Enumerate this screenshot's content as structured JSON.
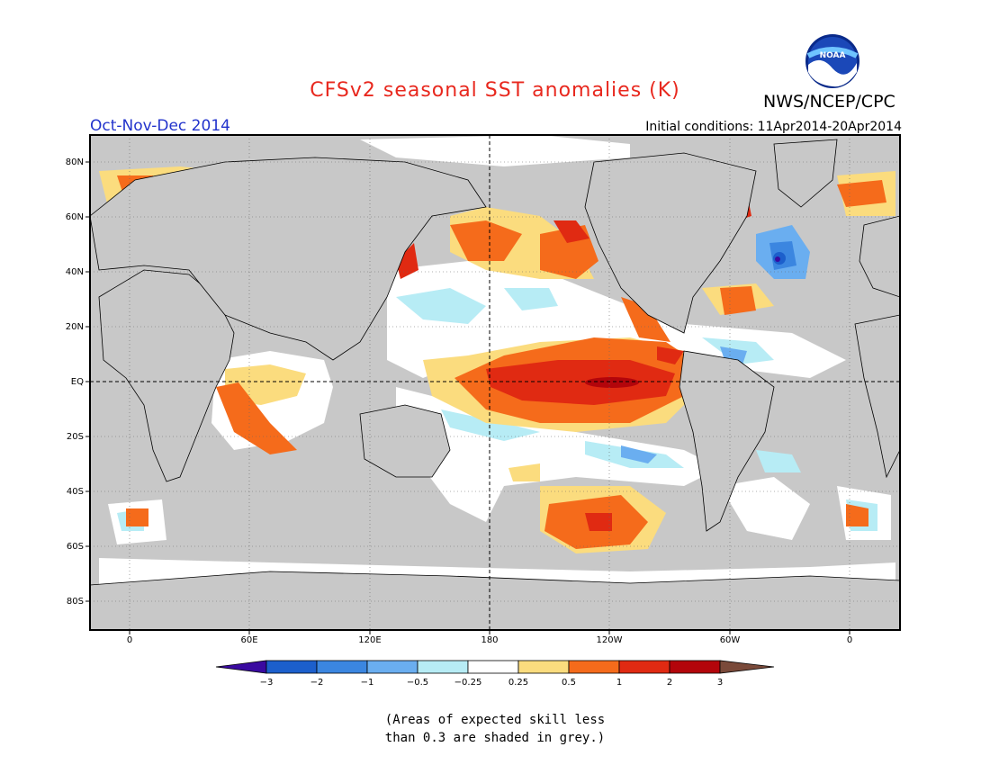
{
  "title": "CFSv2 seasonal SST anomalies (K)",
  "organization": "NWS/NCEP/CPC",
  "logo_text": "NOAA",
  "season": "Oct-Nov-Dec 2014",
  "initial_conditions": "Initial conditions: 11Apr2014-20Apr2014",
  "lat_labels": [
    "80N",
    "60N",
    "40N",
    "20N",
    "EQ",
    "20S",
    "40S",
    "60S",
    "80S"
  ],
  "lon_labels": [
    "0",
    "60E",
    "120E",
    "180",
    "120W",
    "60W",
    "0"
  ],
  "colorbar": {
    "labels": [
      "-3",
      "-2",
      "-1",
      "-0.5",
      "-0.25",
      "0.25",
      "0.5",
      "1",
      "2",
      "3"
    ],
    "colors": [
      "#3a0aa0",
      "#1c5fcc",
      "#3b86e0",
      "#6aaef0",
      "#b7ecf5",
      "#ffffff",
      "#fbdc7e",
      "#f56b1b",
      "#e02a12",
      "#b3050b",
      "#7a4a3a"
    ]
  },
  "footnote_line1": "(Areas of expected skill less",
  "footnote_line2": "than 0.3 are shaded in grey.)",
  "colors": {
    "grey_mask": "#c8c8c8",
    "title_red": "#e8281e",
    "season_blue": "#2233cc"
  }
}
